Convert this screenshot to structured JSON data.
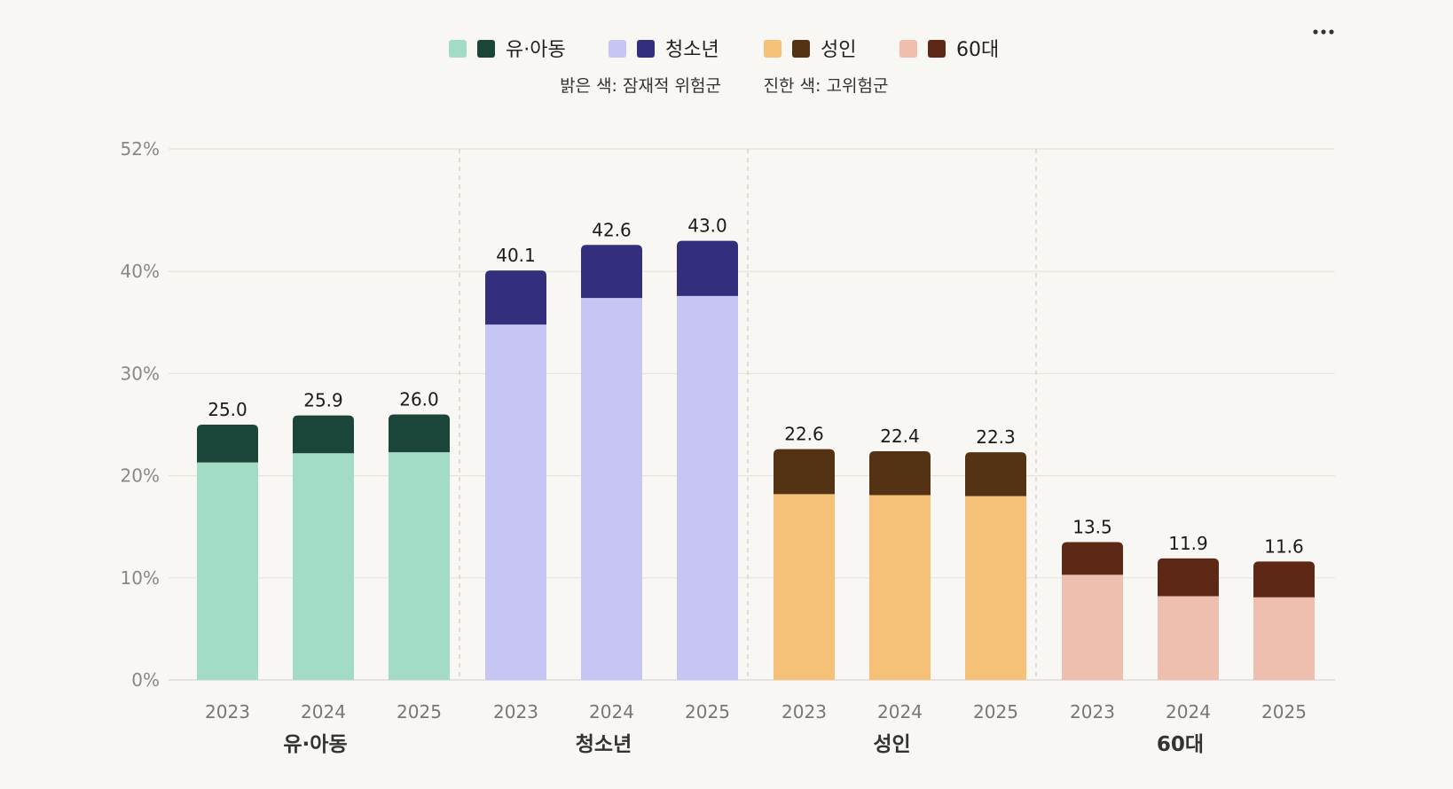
{
  "legend": {
    "items": [
      {
        "label": "유·아동",
        "light": "#a2dcc5",
        "dark": "#1b4539"
      },
      {
        "label": "청소년",
        "light": "#c6c5f3",
        "dark": "#332f7c"
      },
      {
        "label": "성인",
        "light": "#f4c177",
        "dark": "#543315"
      },
      {
        "label": "60대",
        "light": "#eebfae",
        "dark": "#5e2817"
      }
    ],
    "note_light": "밝은 색: 잠재적 위험군",
    "note_dark": "진한 색: 고위험군"
  },
  "menu_icon": "more-horizontal-icon",
  "chart_data": {
    "type": "bar",
    "stacked": true,
    "groups": [
      "유·아동",
      "청소년",
      "성인",
      "60대"
    ],
    "categories": [
      "2023",
      "2024",
      "2025"
    ],
    "series": [
      {
        "values": [
          [
            21.3,
            22.2,
            22.3
          ],
          [
            34.8,
            37.4,
            37.6
          ],
          [
            18.2,
            18.1,
            18.0
          ],
          [
            10.3,
            8.2,
            8.1
          ]
        ]
      },
      {
        "values": [
          [
            3.7,
            3.7,
            3.7
          ],
          [
            5.3,
            5.2,
            5.4
          ],
          [
            4.4,
            4.3,
            4.3
          ],
          [
            3.2,
            3.7,
            3.5
          ]
        ]
      }
    ],
    "totals": [
      [
        "25.0",
        "25.9",
        "26.0"
      ],
      [
        "40.1",
        "42.6",
        "43.0"
      ],
      [
        "22.6",
        "22.4",
        "22.3"
      ],
      [
        "13.5",
        "11.9",
        "11.6"
      ]
    ],
    "y_ticks": [
      "0%",
      "10%",
      "20%",
      "30%",
      "40%",
      "52%"
    ],
    "y_tick_values": [
      0,
      10,
      20,
      30,
      40,
      52
    ],
    "ylim": [
      0,
      52
    ],
    "grid": true,
    "legend_position": "top-center"
  }
}
